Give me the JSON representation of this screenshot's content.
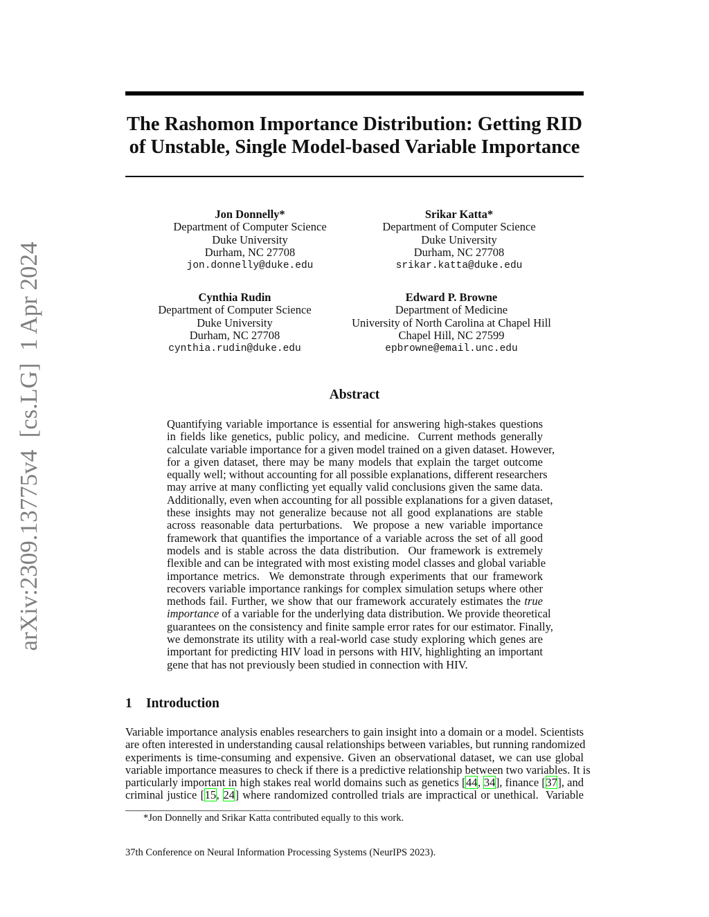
{
  "sidebar_stamp": "arXiv:2309.13775v4  [cs.LG]  1 Apr 2024",
  "title": [
    "The Rashomon Importance Distribution: Getting RID",
    "of Unstable, Single Model-based Variable Importance"
  ],
  "authors": [
    {
      "name": "Jon Donnelly*",
      "dept": "Department of Computer Science",
      "univ": "Duke University",
      "addr": "Durham, NC 27708",
      "email": "jon.donnelly@duke.edu"
    },
    {
      "name": "Srikar Katta*",
      "dept": "Department of Computer Science",
      "univ": "Duke University",
      "addr": "Durham, NC 27708",
      "email": "srikar.katta@duke.edu"
    },
    {
      "name": "Cynthia Rudin",
      "dept": "Department of Computer Science",
      "univ": "Duke University",
      "addr": "Durham, NC 27708",
      "email": "cynthia.rudin@duke.edu"
    },
    {
      "name": "Edward P. Browne",
      "dept": "Department of Medicine",
      "univ": "University of North Carolina at Chapel Hill",
      "addr": "Chapel Hill, NC 27599",
      "email": "epbrowne@email.unc.edu"
    }
  ],
  "abstract": {
    "heading": "Abstract",
    "lines": [
      [
        "Quantifying variable importance is essential for answering high-stakes questions"
      ],
      [
        "in fields like genetics, public policy, and medicine.  Current methods generally"
      ],
      [
        "calculate variable importance for a given model trained on a given dataset. However,"
      ],
      [
        "for a given dataset, there may be many models that explain the target outcome"
      ],
      [
        "equally well; without accounting for all possible explanations, different researchers"
      ],
      [
        "may arrive at many conflicting yet equally valid conclusions given the same data."
      ],
      [
        "Additionally, even when accounting for all possible explanations for a given dataset,"
      ],
      [
        "these insights may not generalize because not all good explanations are stable"
      ],
      [
        "across reasonable data perturbations.  We propose a new variable importance"
      ],
      [
        "framework that quantifies the importance of a variable across the set of all good"
      ],
      [
        "models and is stable across the data distribution.  Our framework is extremely"
      ],
      [
        "flexible and can be integrated with most existing model classes and global variable"
      ],
      [
        "importance metrics.  We demonstrate through experiments that our framework"
      ],
      [
        "recovers variable importance rankings for complex simulation setups where other"
      ],
      [
        "methods fail. Further, we show that our framework accurately estimates the ",
        {
          "em": "true"
        }
      ],
      [
        {
          "em": "importance"
        },
        " of a variable for the underlying data distribution. We provide theoretical"
      ],
      [
        "guarantees on the consistency and finite sample error rates for our estimator. Finally,"
      ],
      [
        "we demonstrate its utility with a real-world case study exploring which genes are"
      ],
      [
        "important for predicting HIV load in persons with HIV, highlighting an important"
      ],
      [
        "gene that has not previously been studied in connection with HIV."
      ]
    ]
  },
  "introduction": {
    "number": "1",
    "heading": "Introduction",
    "lines": [
      [
        "Variable importance analysis enables researchers to gain insight into a domain or a model. Scientists"
      ],
      [
        "are often interested in understanding causal relationships between variables, but running randomized"
      ],
      [
        "experiments is time-consuming and expensive. Given an observational dataset, we can use global"
      ],
      [
        "variable importance measures to check if there is a predictive relationship between two variables. It is"
      ],
      [
        "particularly important in high stakes real world domains such as genetics [",
        {
          "cite": "44"
        },
        ", ",
        {
          "cite": "34"
        },
        "], finance [",
        {
          "cite": "37"
        },
        "], and"
      ],
      [
        "criminal justice [",
        {
          "cite": "15"
        },
        ", ",
        {
          "cite": "24"
        },
        "] where randomized controlled trials are impractical or unethical.  Variable"
      ]
    ]
  },
  "footnote": "*Jon Donnelly and Srikar Katta contributed equally to this work.",
  "venue": "37th Conference on Neural Information Processing Systems (NeurIPS 2023).",
  "colors": {
    "citation_box": "#00ff00",
    "stamp": "#7f7f7f"
  }
}
